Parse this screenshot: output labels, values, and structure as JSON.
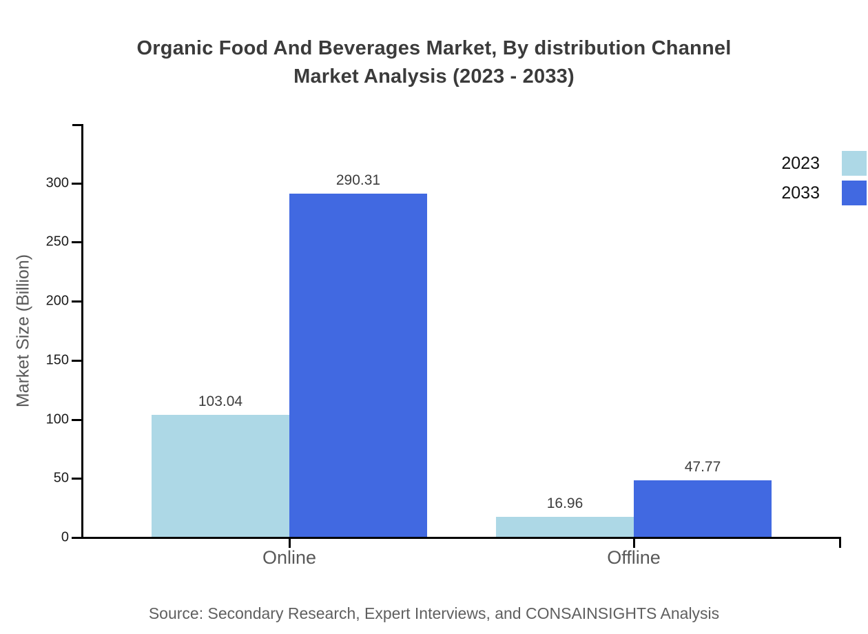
{
  "title": {
    "line1": "Organic Food And Beverages Market, By distribution Channel",
    "line2": "Market Analysis (2023 - 2033)"
  },
  "source": "Source: Secondary Research, Expert Interviews, and CONSAINSIGHTS Analysis",
  "chart_data": {
    "type": "bar",
    "title": "Organic Food And Beverages Market, By distribution Channel Market Analysis (2023 - 2033)",
    "categories": [
      "Online",
      "Offline"
    ],
    "series": [
      {
        "name": "2023",
        "color": "#ADD8E6",
        "values": [
          103.04,
          16.96
        ]
      },
      {
        "name": "2033",
        "color": "#4169E1",
        "values": [
          290.31,
          47.77
        ]
      }
    ],
    "xlabel": "",
    "ylabel": "Market Size (Billion)",
    "ylim": [
      0,
      350
    ],
    "yticks": [
      0,
      50,
      100,
      150,
      200,
      250,
      300
    ],
    "grid": false,
    "legend_position": "top-right",
    "value_labels": true,
    "axis_color": "#000000"
  }
}
